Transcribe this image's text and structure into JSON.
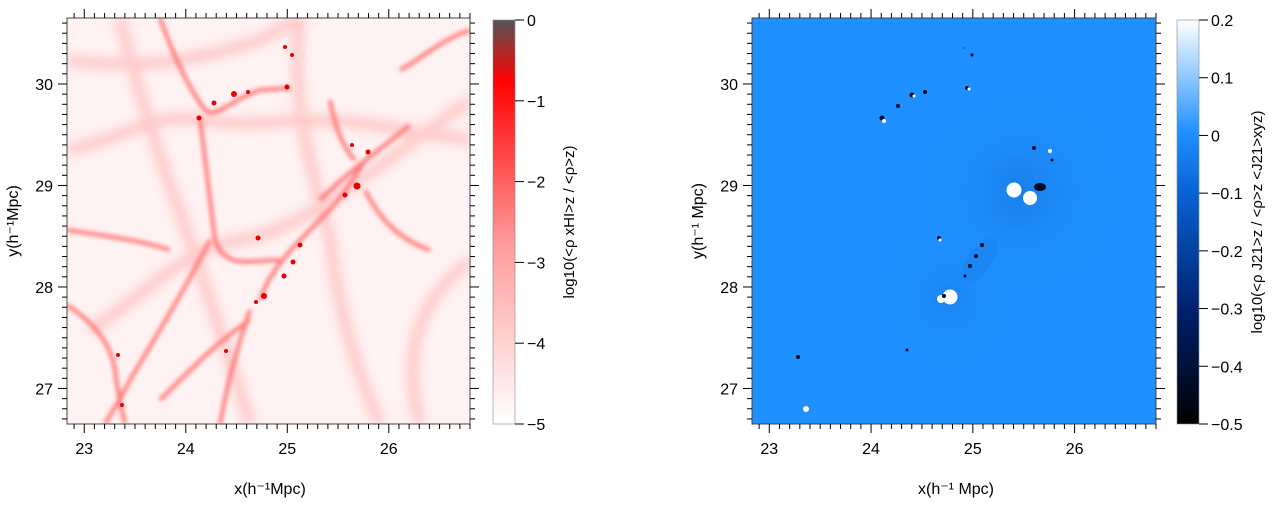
{
  "chart_data": [
    {
      "type": "heatmap",
      "panel": "left",
      "xlabel": "x(h⁻¹Mpc)",
      "ylabel": "y(h⁻¹Mpc)",
      "xlim": [
        22.83,
        26.8
      ],
      "ylim": [
        26.65,
        30.65
      ],
      "x_ticks": [
        "23",
        "24",
        "25",
        "26"
      ],
      "y_ticks": [
        "27",
        "28",
        "29",
        "30"
      ],
      "colorbar": {
        "label": "log₁₀(<ρ xₕᵢ>z / <ρ>z)",
        "label_display": "log10(<ρ  xHI>z / <ρ>z)",
        "range": [
          -5,
          0
        ],
        "ticks": [
          "0",
          "−1",
          "−2",
          "−3",
          "−4",
          "−5"
        ],
        "colors": [
          "#ffffff",
          "#ff0000",
          "#555555"
        ]
      }
    },
    {
      "type": "heatmap",
      "panel": "right",
      "xlabel": "x(h⁻¹ Mpc)",
      "ylabel": "y(h⁻¹ Mpc)",
      "xlim": [
        22.83,
        26.8
      ],
      "ylim": [
        26.65,
        30.65
      ],
      "x_ticks": [
        "23",
        "24",
        "25",
        "26"
      ],
      "y_ticks": [
        "27",
        "28",
        "29",
        "30"
      ],
      "colorbar": {
        "label_display": "log10(<ρ J21>z / <ρ>z <J21>xyz)",
        "range": [
          -0.5,
          0.2
        ],
        "ticks": [
          "0.2",
          "0.1",
          "0",
          "−0.1",
          "−0.2",
          "−0.3",
          "−0.4",
          "−0.5"
        ],
        "colors": [
          "#000000",
          "#001a66",
          "#0a5fd0",
          "#1e90ff",
          "#ffffff"
        ]
      }
    }
  ]
}
